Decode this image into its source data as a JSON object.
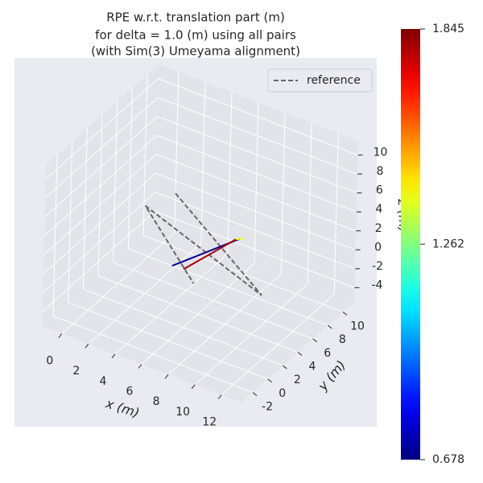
{
  "chart_data": {
    "type": "line3d",
    "title": [
      "RPE w.r.t. translation part (m)",
      "for delta = 1.0 (m) using all pairs",
      "(with Sim(3) Umeyama alignment)"
    ],
    "xlabel": "x (m)",
    "ylabel": "y (m)",
    "zlabel": "z (m)",
    "xlim": [
      -1.5,
      13.5
    ],
    "ylim": [
      -3.5,
      11.5
    ],
    "zlim": [
      -5.5,
      11.5
    ],
    "xticks": [
      0,
      2,
      4,
      6,
      8,
      10,
      12
    ],
    "yticks": [
      -2,
      0,
      2,
      4,
      6,
      8,
      10
    ],
    "zticks": [
      -4,
      -2,
      0,
      2,
      4,
      6,
      8,
      10
    ],
    "grid": true,
    "legend_position": "upper right",
    "reference": {
      "name": "reference",
      "color": "#666666",
      "x": [
        2.9,
        9.6,
        1.5,
        4.8
      ],
      "y": [
        6.2,
        6.0,
        4.7,
        5.5
      ],
      "z": [
        4,
        -3,
        3,
        -4
      ]
    },
    "segments": [
      {
        "x": [
          4.8,
          6.8
        ],
        "y": [
          2.5,
          8.1
        ],
        "z": [
          0,
          0
        ],
        "value": 0.7
      },
      {
        "x": [
          5.6,
          6.6
        ],
        "y": [
          2.6,
          7.8
        ],
        "z": [
          0,
          0
        ],
        "value": 1.8
      },
      {
        "x": [
          6.6,
          6.9
        ],
        "y": [
          7.8,
          8.2
        ],
        "z": [
          0,
          0
        ],
        "value": 1.4
      }
    ],
    "colormap": "jet",
    "clim": [
      0.678,
      1.845
    ],
    "colorbar_ticks": [
      0.678,
      1.262,
      1.845
    ]
  }
}
